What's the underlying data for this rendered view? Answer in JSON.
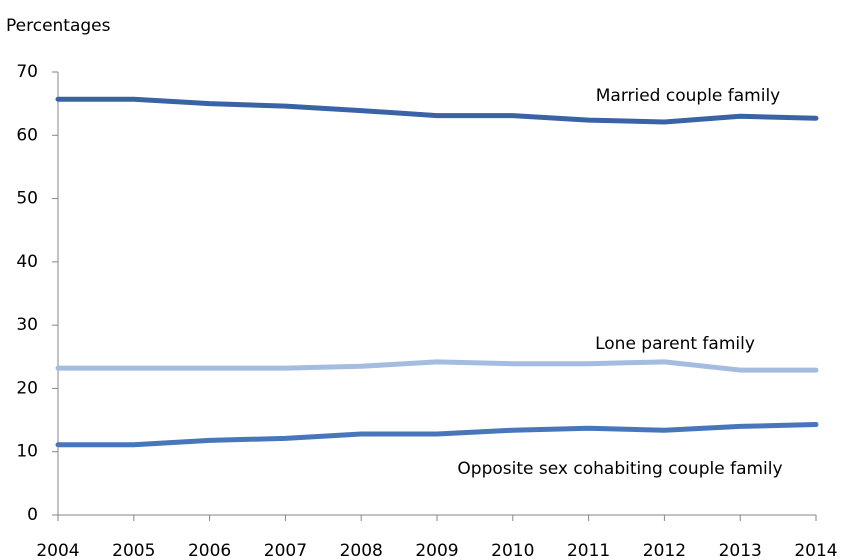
{
  "chart_data": {
    "type": "line",
    "y_label": "Percentages",
    "x": [
      2004,
      2005,
      2006,
      2007,
      2008,
      2009,
      2010,
      2011,
      2012,
      2013,
      2014
    ],
    "xlim": [
      2004,
      2014
    ],
    "xticks": [
      2004,
      2005,
      2006,
      2007,
      2008,
      2009,
      2010,
      2011,
      2012,
      2013,
      2014
    ],
    "ylim": [
      0,
      70
    ],
    "yticks": [
      0,
      10,
      20,
      30,
      40,
      50,
      60,
      70
    ],
    "grid": false,
    "series": [
      {
        "name": "Married couple family",
        "color": "#3a63a5",
        "values": [
          65.7,
          65.7,
          65.0,
          64.6,
          63.9,
          63.1,
          63.1,
          62.4,
          62.1,
          63.0,
          62.7
        ]
      },
      {
        "name": "Lone parent family",
        "color": "#a3bcdf",
        "values": [
          23.2,
          23.2,
          23.2,
          23.2,
          23.5,
          24.2,
          23.9,
          23.9,
          24.2,
          22.9,
          22.9
        ]
      },
      {
        "name": "Opposite sex cohabiting couple family",
        "color": "#4776ba",
        "values": [
          11.1,
          11.1,
          11.8,
          12.1,
          12.8,
          12.8,
          13.4,
          13.7,
          13.4,
          14.0,
          14.3
        ]
      }
    ]
  }
}
